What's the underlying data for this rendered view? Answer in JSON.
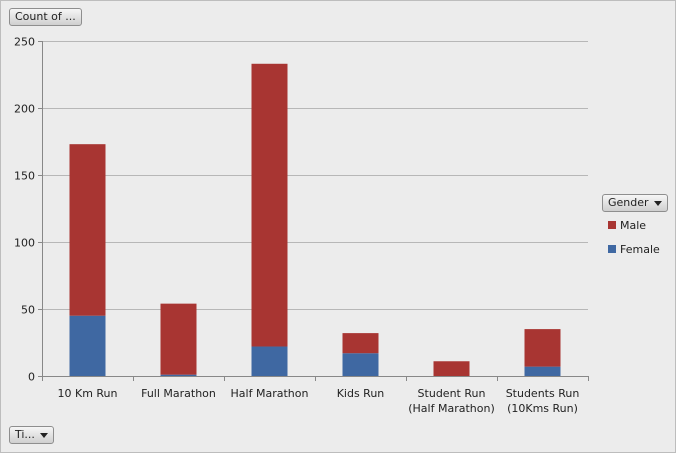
{
  "buttons": {
    "measure": "Count of ...",
    "axis_field": "Ti...",
    "legend_field": "Gender"
  },
  "chart_data": {
    "type": "bar",
    "stacked": true,
    "categories": [
      "10 Km Run",
      "Full Marathon",
      "Half Marathon",
      "Kids Run",
      "Student Run\n(Half Marathon)",
      "Students Run\n(10Kms Run)"
    ],
    "series": [
      {
        "name": "Female",
        "color": "#3f68a2",
        "values": [
          45,
          1,
          22,
          17,
          0,
          7
        ]
      },
      {
        "name": "Male",
        "color": "#a83532",
        "values": [
          128,
          53,
          211,
          15,
          11,
          28
        ]
      }
    ],
    "legend_order": [
      "Male",
      "Female"
    ],
    "ylim": [
      0,
      250
    ],
    "yticks": [
      0,
      50,
      100,
      150,
      200,
      250
    ],
    "grid": true,
    "legend_position": "right"
  }
}
